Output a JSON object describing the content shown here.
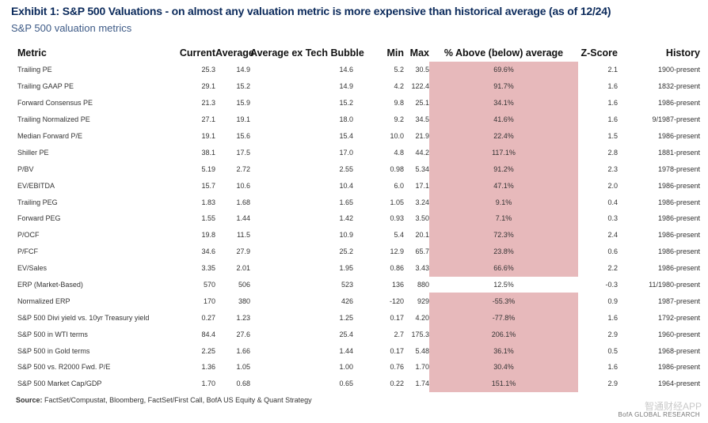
{
  "title": "Exhibit 1: S&P 500 Valuations - on almost any valuation metric is more expensive than historical average (as of 12/24)",
  "subtitle": "S&P 500 valuation metrics",
  "columns": [
    "Metric",
    "Current",
    "Average",
    "Average ex Tech Bubble",
    "Min",
    "Max",
    "% Above (below) average",
    "Z-Score",
    "History"
  ],
  "rows": [
    {
      "metric": "Trailing PE",
      "current": "25.3",
      "average": "14.9",
      "avg_ex": "14.6",
      "min": "5.2",
      "max": "30.5",
      "pct": "69.6%",
      "z": "2.1",
      "history": "1900-present",
      "highlight": true
    },
    {
      "metric": "Trailing GAAP PE",
      "current": "29.1",
      "average": "15.2",
      "avg_ex": "14.9",
      "min": "4.2",
      "max": "122.4",
      "pct": "91.7%",
      "z": "1.6",
      "history": "1832-present",
      "highlight": true
    },
    {
      "metric": "Forward Consensus PE",
      "current": "21.3",
      "average": "15.9",
      "avg_ex": "15.2",
      "min": "9.8",
      "max": "25.1",
      "pct": "34.1%",
      "z": "1.6",
      "history": "1986-present",
      "highlight": true
    },
    {
      "metric": "Trailing Normalized PE",
      "current": "27.1",
      "average": "19.1",
      "avg_ex": "18.0",
      "min": "9.2",
      "max": "34.5",
      "pct": "41.6%",
      "z": "1.6",
      "history": "9/1987-present",
      "highlight": true
    },
    {
      "metric": "Median Forward P/E",
      "current": "19.1",
      "average": "15.6",
      "avg_ex": "15.4",
      "min": "10.0",
      "max": "21.9",
      "pct": "22.4%",
      "z": "1.5",
      "history": "1986-present",
      "highlight": true
    },
    {
      "metric": "Shiller PE",
      "current": "38.1",
      "average": "17.5",
      "avg_ex": "17.0",
      "min": "4.8",
      "max": "44.2",
      "pct": "117.1%",
      "z": "2.8",
      "history": "1881-present",
      "highlight": true
    },
    {
      "metric": "P/BV",
      "current": "5.19",
      "average": "2.72",
      "avg_ex": "2.55",
      "min": "0.98",
      "max": "5.34",
      "pct": "91.2%",
      "z": "2.3",
      "history": "1978-present",
      "highlight": true
    },
    {
      "metric": "EV/EBITDA",
      "current": "15.7",
      "average": "10.6",
      "avg_ex": "10.4",
      "min": "6.0",
      "max": "17.1",
      "pct": "47.1%",
      "z": "2.0",
      "history": "1986-present",
      "highlight": true
    },
    {
      "metric": "Trailing PEG",
      "current": "1.83",
      "average": "1.68",
      "avg_ex": "1.65",
      "min": "1.05",
      "max": "3.24",
      "pct": "9.1%",
      "z": "0.4",
      "history": "1986-present",
      "highlight": true
    },
    {
      "metric": "Forward PEG",
      "current": "1.55",
      "average": "1.44",
      "avg_ex": "1.42",
      "min": "0.93",
      "max": "3.50",
      "pct": "7.1%",
      "z": "0.3",
      "history": "1986-present",
      "highlight": true
    },
    {
      "metric": "P/OCF",
      "current": "19.8",
      "average": "11.5",
      "avg_ex": "10.9",
      "min": "5.4",
      "max": "20.1",
      "pct": "72.3%",
      "z": "2.4",
      "history": "1986-present",
      "highlight": true
    },
    {
      "metric": "P/FCF",
      "current": "34.6",
      "average": "27.9",
      "avg_ex": "25.2",
      "min": "12.9",
      "max": "65.7",
      "pct": "23.8%",
      "z": "0.6",
      "history": "1986-present",
      "highlight": true
    },
    {
      "metric": "EV/Sales",
      "current": "3.35",
      "average": "2.01",
      "avg_ex": "1.95",
      "min": "0.86",
      "max": "3.43",
      "pct": "66.6%",
      "z": "2.2",
      "history": "1986-present",
      "highlight": true
    },
    {
      "metric": "ERP (Market-Based)",
      "current": "570",
      "average": "506",
      "avg_ex": "523",
      "min": "136",
      "max": "880",
      "pct": "12.5%",
      "z": "-0.3",
      "history": "11/1980-present",
      "highlight": false
    },
    {
      "metric": "Normalized ERP",
      "current": "170",
      "average": "380",
      "avg_ex": "426",
      "min": "-120",
      "max": "929",
      "pct": "-55.3%",
      "z": "0.9",
      "history": "1987-present",
      "highlight": true
    },
    {
      "metric": "S&P 500 Divi yield vs. 10yr Treasury yield",
      "current": "0.27",
      "average": "1.23",
      "avg_ex": "1.25",
      "min": "0.17",
      "max": "4.20",
      "pct": "-77.8%",
      "z": "1.6",
      "history": "1792-present",
      "highlight": true
    },
    {
      "metric": "S&P 500 in WTI terms",
      "current": "84.4",
      "average": "27.6",
      "avg_ex": "25.4",
      "min": "2.7",
      "max": "175.3",
      "pct": "206.1%",
      "z": "2.9",
      "history": "1960-present",
      "highlight": true
    },
    {
      "metric": "S&P 500 in Gold terms",
      "current": "2.25",
      "average": "1.66",
      "avg_ex": "1.44",
      "min": "0.17",
      "max": "5.48",
      "pct": "36.1%",
      "z": "0.5",
      "history": "1968-present",
      "highlight": true
    },
    {
      "metric": "S&P 500 vs. R2000 Fwd. P/E",
      "current": "1.36",
      "average": "1.05",
      "avg_ex": "1.00",
      "min": "0.76",
      "max": "1.70",
      "pct": "30.4%",
      "z": "1.6",
      "history": "1986-present",
      "highlight": true
    },
    {
      "metric": "S&P 500 Market Cap/GDP",
      "current": "1.70",
      "average": "0.68",
      "avg_ex": "0.65",
      "min": "0.22",
      "max": "1.74",
      "pct": "151.1%",
      "z": "2.9",
      "history": "1964-present",
      "highlight": true
    }
  ],
  "source_label": "Source:",
  "source_text": "FactSet/Compustat, Bloomberg, FactSet/First Call, BofA US Equity & Quant Strategy",
  "brand": "BofA GLOBAL RESEARCH",
  "watermark": "智通财经APP",
  "highlight_color": "#e7b9bb"
}
